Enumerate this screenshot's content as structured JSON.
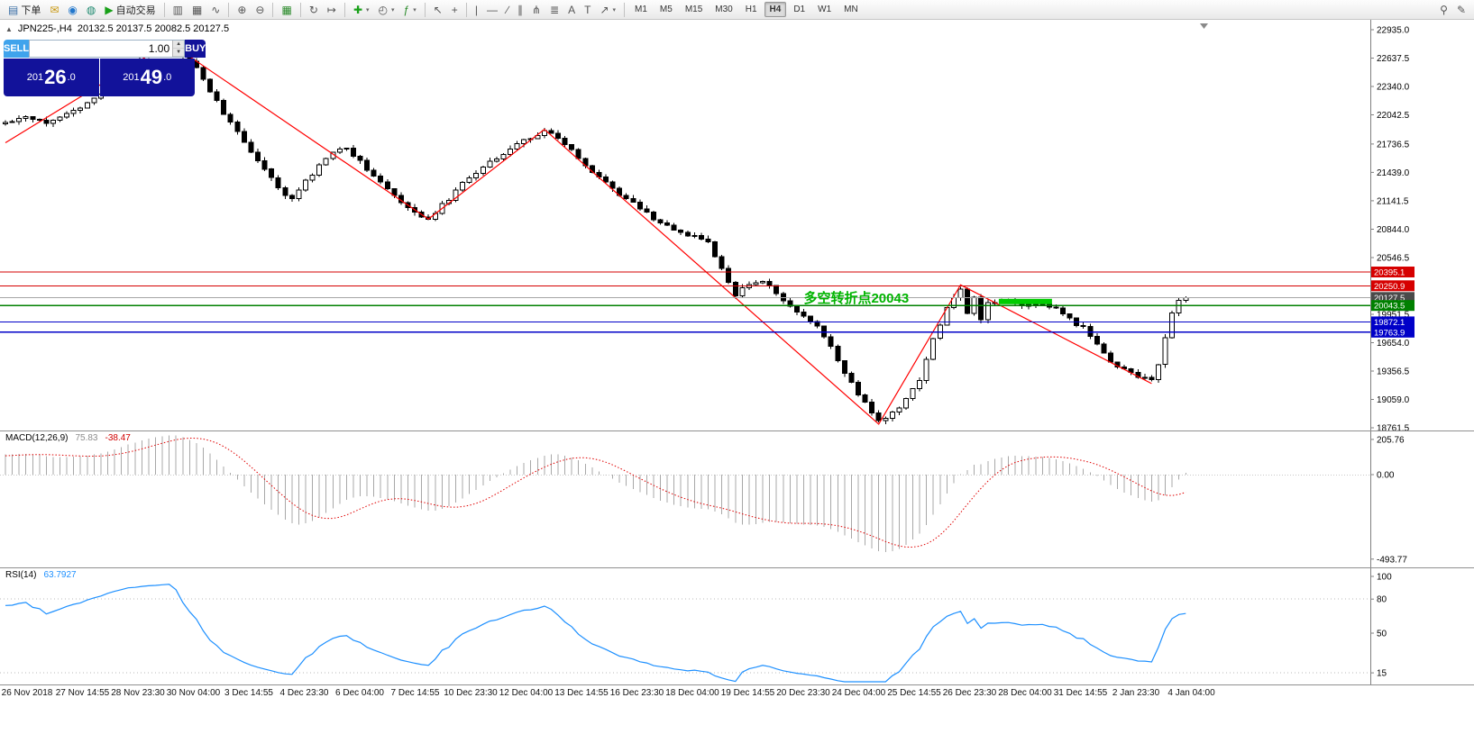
{
  "toolbar": {
    "items": [
      {
        "name": "new-order-button",
        "glyph": "▤",
        "color": "#3A6EA5",
        "label": "下单"
      },
      {
        "name": "mailbox-icon",
        "glyph": "✉",
        "color": "#C8960C"
      },
      {
        "name": "news-icon",
        "glyph": "◉",
        "color": "#2277CC"
      },
      {
        "name": "community-icon",
        "glyph": "◍",
        "color": "#1F8A70"
      },
      {
        "name": "autotrading-button",
        "glyph": "▶",
        "color": "#18A018",
        "label": "自动交易"
      },
      {
        "sep": true
      },
      {
        "name": "bar-chart-icon",
        "glyph": "▥",
        "color": "#555555"
      },
      {
        "name": "candlestick-chart-icon",
        "glyph": "▦",
        "color": "#555555"
      },
      {
        "name": "line-chart-icon",
        "glyph": "∿",
        "color": "#555555"
      },
      {
        "sep": true
      },
      {
        "name": "zoom-in-icon",
        "glyph": "⊕",
        "color": "#555555"
      },
      {
        "name": "zoom-out-icon",
        "glyph": "⊖",
        "color": "#555555"
      },
      {
        "sep": true
      },
      {
        "name": "tile-windows-icon",
        "glyph": "▦",
        "color": "#2A8A2A"
      },
      {
        "sep": true
      },
      {
        "name": "autoscroll-icon",
        "glyph": "↻",
        "color": "#555555"
      },
      {
        "name": "chart-shift-icon",
        "glyph": "↦",
        "color": "#555555"
      },
      {
        "sep": true
      },
      {
        "name": "new-chart-icon",
        "glyph": "✚",
        "color": "#18A018",
        "caret": true
      },
      {
        "name": "profiles-icon",
        "glyph": "◴",
        "color": "#555555",
        "caret": true
      },
      {
        "name": "indicators-icon",
        "glyph": "ƒ",
        "color": "#2A8A2A",
        "caret": true
      },
      {
        "sep": true
      },
      {
        "name": "cursor-icon",
        "glyph": "↖",
        "color": "#555555"
      },
      {
        "name": "crosshair-icon",
        "glyph": "+",
        "color": "#555555"
      },
      {
        "sep": true
      },
      {
        "name": "vertical-line-icon",
        "glyph": "|",
        "color": "#555555"
      },
      {
        "name": "horizontal-line-icon",
        "glyph": "—",
        "color": "#555555"
      },
      {
        "name": "trendline-icon",
        "glyph": "∕",
        "color": "#555555"
      },
      {
        "name": "equidistant-channel-icon",
        "glyph": "∥",
        "color": "#555555"
      },
      {
        "name": "andrews-pitchfork-icon",
        "glyph": "⋔",
        "color": "#555555"
      },
      {
        "name": "fibonacci-icon",
        "glyph": "≣",
        "color": "#555555"
      },
      {
        "name": "text-icon",
        "glyph": "A",
        "color": "#555555"
      },
      {
        "name": "text-label-icon",
        "glyph": "T",
        "color": "#555555"
      },
      {
        "name": "arrows-icon",
        "glyph": "↗",
        "color": "#555555",
        "caret": true
      }
    ],
    "timeframes": [
      "M1",
      "M5",
      "M15",
      "M30",
      "H1",
      "H4",
      "D1",
      "W1",
      "MN"
    ],
    "active_timeframe": "H4",
    "items_right": [
      {
        "name": "zoom-tool-icon",
        "glyph": "⚲",
        "color": "#555555"
      },
      {
        "name": "edit-tool-icon",
        "glyph": "✎",
        "color": "#555555"
      }
    ]
  },
  "chart": {
    "collapse_glyph": "▲",
    "title": "JPN225-,H4",
    "ohlc": "20132.5 20137.5 20082.5 20127.5",
    "time_axis": [
      "26 Nov 2018",
      "27 Nov 14:55",
      "28 Nov 23:30",
      "30 Nov 04:00",
      "3 Dec 14:55",
      "4 Dec 23:30",
      "6 Dec 04:00",
      "7 Dec 14:55",
      "10 Dec 23:30",
      "12 Dec 04:00",
      "13 Dec 14:55",
      "16 Dec 23:30",
      "18 Dec 04:00",
      "19 Dec 14:55",
      "20 Dec 23:30",
      "24 Dec 04:00",
      "25 Dec 14:55",
      "26 Dec 23:30",
      "28 Dec 04:00",
      "31 Dec 14:55",
      "2 Jan 23:30",
      "4 Jan 04:00"
    ]
  },
  "trade_panel": {
    "sell_label": "SELL",
    "buy_label": "BUY",
    "lot": "1.00",
    "spin_up": "▲",
    "spin_down": "▼",
    "sell_price": {
      "full": "20126.0",
      "prefix": "201",
      "big": "26",
      "suffix": ".0"
    },
    "buy_price": {
      "full": "20149.0",
      "prefix": "201",
      "big": "49",
      "suffix": ".0"
    }
  },
  "macd": {
    "label": "MACD(12,26,9)",
    "value_main": "75.83",
    "value_signal": "-38.47",
    "axis": [
      {
        "text": "205.76",
        "value": 205.76
      },
      {
        "text": "0.00",
        "value": 0
      },
      {
        "text": "-493.77",
        "value": -493.77
      }
    ]
  },
  "rsi": {
    "label": "RSI(14)",
    "value": "63.7927",
    "axis": [
      {
        "text": "100",
        "value": 100
      },
      {
        "text": "80",
        "value": 80
      },
      {
        "text": "50",
        "value": 50
      },
      {
        "text": "15",
        "value": 15
      }
    ],
    "levels": [
      80,
      15
    ]
  },
  "colors": {
    "zigzag": "#FF0000",
    "macd_hist": "#A8A8A8",
    "macd_signal": "#E00000",
    "rsi_line": "#1E90FF",
    "annotation_green": "#00B400",
    "highlight_green": "#00CC00"
  },
  "chart_data": {
    "type": "candlestick",
    "symbol": "JPN225-",
    "period": "H4",
    "last_close": 20127.5,
    "visible_ohlc": {
      "open": 20132.5,
      "high": 20137.5,
      "low": 20082.5,
      "close": 20127.5
    },
    "bid": 20126.0,
    "ask": 20149.0,
    "price_axis_top": 22935.0,
    "price_axis_bottom": 18761.5,
    "price_ticks": [
      22935.0,
      22637.5,
      22340.0,
      22042.5,
      21736.5,
      21439.0,
      21141.5,
      20844.0,
      20546.5,
      19951.5,
      19654.0,
      19356.5,
      19059.0,
      18761.5
    ],
    "price_tags": [
      {
        "text": "20395.1",
        "value": 20395.1,
        "bg": "#D60000"
      },
      {
        "text": "20250.9",
        "value": 20250.9,
        "bg": "#D60000"
      },
      {
        "text": "20127.5",
        "value": 20127.5,
        "bg": "#4A4A4A"
      },
      {
        "text": "20043.5",
        "value": 20043.5,
        "bg": "#008000"
      },
      {
        "text": "19872.1",
        "value": 19872.1,
        "bg": "#0000C8"
      },
      {
        "text": "19763.9",
        "value": 19763.9,
        "bg": "#0000C8"
      }
    ],
    "hlines": [
      {
        "value": 20395.1,
        "color": "#D60000",
        "w": 1
      },
      {
        "value": 20250.9,
        "color": "#D60000",
        "w": 1
      },
      {
        "value": 20127.5,
        "color": "#A6A6A6",
        "w": 1
      },
      {
        "value": 20043.5,
        "color": "#008000",
        "w": 1.2
      },
      {
        "value": 19872.1,
        "color": "#0000C8",
        "w": 1.2
      },
      {
        "value": 19763.9,
        "color": "#0000C8",
        "w": 1.2
      }
    ],
    "candles_count": 174,
    "close_anchors": [
      [
        0,
        21960
      ],
      [
        3,
        22030
      ],
      [
        6,
        21970
      ],
      [
        9,
        22060
      ],
      [
        12,
        22150
      ],
      [
        15,
        22340
      ],
      [
        18,
        22540
      ],
      [
        21,
        22700
      ],
      [
        24,
        22790
      ],
      [
        26,
        22680
      ],
      [
        28,
        22520
      ],
      [
        30,
        22300
      ],
      [
        32,
        22060
      ],
      [
        34,
        21860
      ],
      [
        36,
        21660
      ],
      [
        38,
        21470
      ],
      [
        40,
        21270
      ],
      [
        42,
        21160
      ],
      [
        44,
        21340
      ],
      [
        46,
        21500
      ],
      [
        48,
        21660
      ],
      [
        50,
        21690
      ],
      [
        52,
        21560
      ],
      [
        54,
        21410
      ],
      [
        56,
        21260
      ],
      [
        58,
        21110
      ],
      [
        60,
        21010
      ],
      [
        62,
        20960
      ],
      [
        64,
        21090
      ],
      [
        66,
        21240
      ],
      [
        68,
        21390
      ],
      [
        70,
        21500
      ],
      [
        72,
        21600
      ],
      [
        74,
        21690
      ],
      [
        76,
        21770
      ],
      [
        79,
        21880
      ],
      [
        81,
        21790
      ],
      [
        83,
        21660
      ],
      [
        85,
        21510
      ],
      [
        87,
        21390
      ],
      [
        89,
        21260
      ],
      [
        91,
        21160
      ],
      [
        93,
        21060
      ],
      [
        95,
        20960
      ],
      [
        97,
        20870
      ],
      [
        99,
        20810
      ],
      [
        101,
        20760
      ],
      [
        103,
        20700
      ],
      [
        105,
        20420
      ],
      [
        107,
        20160
      ],
      [
        109,
        20260
      ],
      [
        111,
        20310
      ],
      [
        113,
        20170
      ],
      [
        115,
        20020
      ],
      [
        117,
        19920
      ],
      [
        119,
        19820
      ],
      [
        121,
        19620
      ],
      [
        123,
        19320
      ],
      [
        125,
        19120
      ],
      [
        127,
        18930
      ],
      [
        128,
        18830
      ],
      [
        130,
        18910
      ],
      [
        132,
        19060
      ],
      [
        134,
        19260
      ],
      [
        136,
        19700
      ],
      [
        138,
        20010
      ],
      [
        140,
        20230
      ],
      [
        141,
        19960
      ],
      [
        142,
        20120
      ],
      [
        143,
        19900
      ],
      [
        144,
        20070
      ],
      [
        146,
        20110
      ],
      [
        148,
        20060
      ],
      [
        150,
        20050
      ],
      [
        152,
        20070
      ],
      [
        154,
        20000
      ],
      [
        156,
        19900
      ],
      [
        158,
        19810
      ],
      [
        160,
        19620
      ],
      [
        162,
        19460
      ],
      [
        164,
        19360
      ],
      [
        166,
        19310
      ],
      [
        168,
        19250
      ],
      [
        169,
        19420
      ],
      [
        170,
        19720
      ],
      [
        171,
        19960
      ],
      [
        172,
        20090
      ],
      [
        173,
        20127.5
      ]
    ],
    "zigzag": [
      [
        0,
        21750
      ],
      [
        24,
        22800
      ],
      [
        62,
        20950
      ],
      [
        79,
        21890
      ],
      [
        128,
        18800
      ],
      [
        140,
        20260
      ],
      [
        168,
        19225
      ]
    ],
    "green_segment": {
      "from_index": 146,
      "to_index": 153,
      "price": 20085
    },
    "annotation": {
      "text": "多空转折点20043",
      "at_index": 117,
      "at_price": 20150
    }
  }
}
